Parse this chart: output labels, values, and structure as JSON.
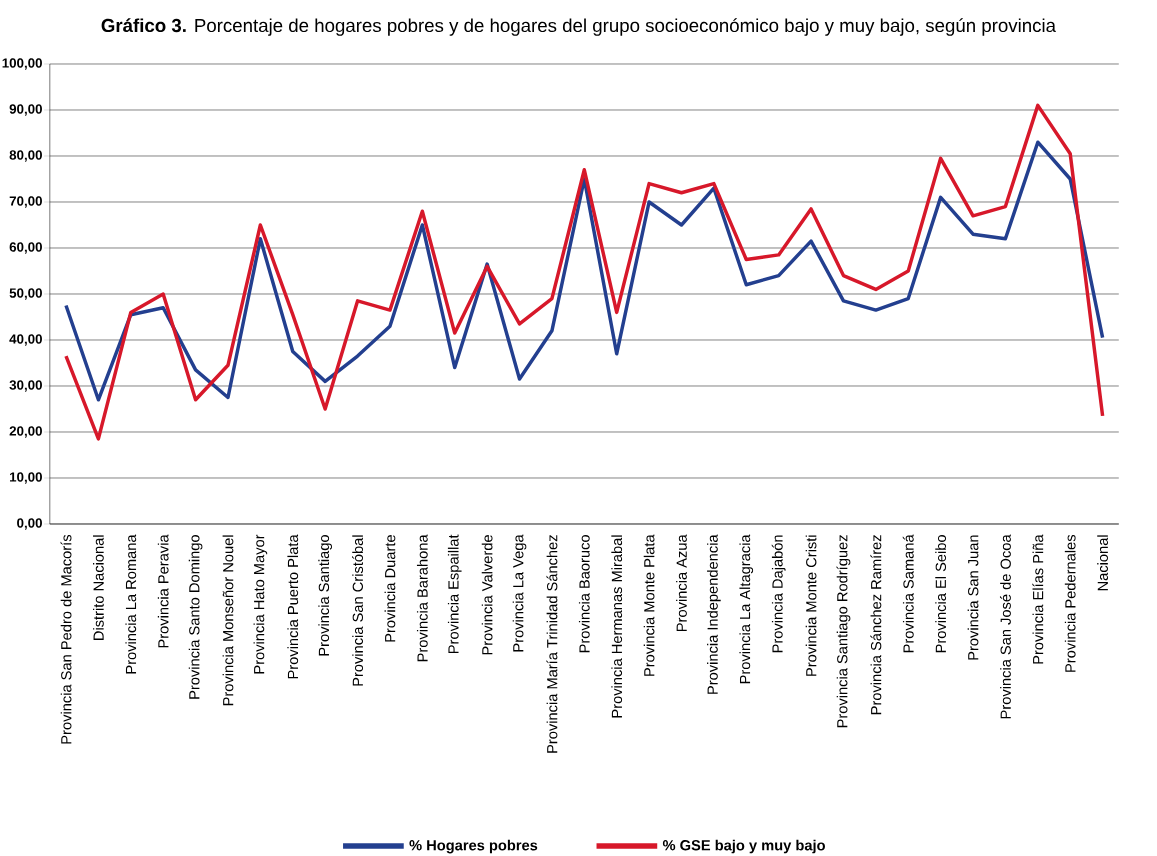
{
  "chart_data": {
    "type": "line",
    "title": "**Gráfico 3.** Porcentaje de hogares pobres y de hogares del grupo socioeconómico bajo y muy bajo, según provincia",
    "categories": [
      "Provincia San Pedro de Macorís",
      "Distrito Nacional",
      "Provincia La Romana",
      "Provincia Peravia",
      "Provincia Santo Domingo",
      "Provincia Monseñor Nouel",
      "Provincia Hato Mayor",
      "Provincia Puerto Plata",
      "Provincia Santiago",
      "Provincia San Cristóbal",
      "Provincia Duarte",
      "Provincia Barahona",
      "Provincia Espaillat",
      "Provincia Valverde",
      "Provincia La Vega",
      "Provincia María Trinidad Sánchez",
      "Provincia Baoruco",
      "Provincia Hermanas Mirabal",
      "Provincia Monte Plata",
      "Provincia Azua",
      "Provincia Independencia",
      "Provincia La Altagracia",
      "Provincia Dajabón",
      "Provincia Monte Cristi",
      "Provincia Santiago Rodríguez",
      "Provincia Sánchez Ramírez",
      "Provincia Samaná",
      "Provincia El Seibo",
      "Provincia San Juan",
      "Provincia San José de Ocoa",
      "Provincia Elías Piña",
      "Provincia Pedernales",
      "Nacional"
    ],
    "series": [
      {
        "name": "% Hogares pobres",
        "color": "#233f8f",
        "values": [
          47.5,
          27,
          45.5,
          47,
          33.5,
          27.5,
          62,
          37.5,
          31,
          36.5,
          43,
          65,
          34,
          56.5,
          31.5,
          42,
          75,
          37,
          70,
          65,
          73,
          52,
          54,
          61.5,
          48.5,
          46.5,
          49,
          71,
          63,
          62,
          83,
          75,
          40.5
        ]
      },
      {
        "name": "% GSE bajo y muy bajo",
        "color": "#d7182a",
        "values": [
          36.5,
          18.5,
          46,
          50,
          27,
          34.5,
          65,
          45.5,
          25,
          48.5,
          46.5,
          68,
          41.5,
          56,
          43.5,
          49,
          77,
          46,
          74,
          72,
          74,
          57.5,
          58.5,
          68.5,
          54,
          51,
          55,
          79.5,
          67,
          69,
          91,
          80.5,
          23.5
        ]
      }
    ],
    "ylim": [
      0,
      100
    ],
    "yticks": [
      {
        "value": 0,
        "label": "0,00"
      },
      {
        "value": 10,
        "label": "10,00"
      },
      {
        "value": 20,
        "label": "20,00"
      },
      {
        "value": 30,
        "label": "30,00"
      },
      {
        "value": 40,
        "label": "40,00"
      },
      {
        "value": 50,
        "label": "50,00"
      },
      {
        "value": 60,
        "label": "60,00"
      },
      {
        "value": 70,
        "label": "70,00"
      },
      {
        "value": 80,
        "label": "80,00"
      },
      {
        "value": 90,
        "label": "90,00"
      },
      {
        "value": 100,
        "label": "100,00"
      }
    ],
    "grid": "y",
    "legend": "bottom",
    "marker": "none",
    "line_style": "solid"
  }
}
